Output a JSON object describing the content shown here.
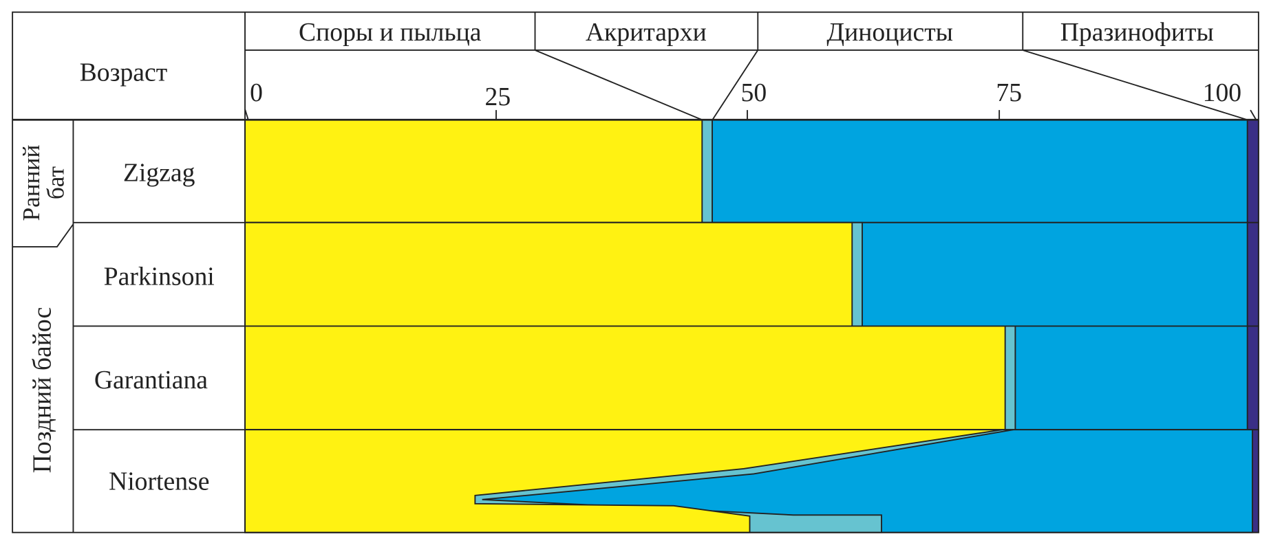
{
  "chart_data": {
    "type": "area",
    "title": "",
    "age_header": "Возраст",
    "stage_labels": [
      "Ранний бат",
      "Поздний байос"
    ],
    "stage_label_lines": [
      [
        "Ранний",
        "бат"
      ],
      [
        "Поздний байос"
      ]
    ],
    "groups": [
      "Споры и пыльца",
      "Акритархи",
      "Диноцисты",
      "Празинофиты"
    ],
    "colors": {
      "Споры и пыльца": "#fff212",
      "Акритархи": "#66c3d0",
      "Диноцисты": "#00a4e0",
      "Празинофиты": "#3a2f86"
    },
    "x_ticks": [
      "0",
      "25",
      "50",
      "75",
      "100"
    ],
    "xlim": [
      0,
      100
    ],
    "zones": [
      {
        "name": "Zigzag",
        "stage": "Ранний бат",
        "shares": [
          45.1,
          1.0,
          52.8,
          1.1
        ]
      },
      {
        "name": "Parkinsoni",
        "stage": "Поздний байос",
        "shares": [
          59.9,
          1.0,
          38.0,
          1.1
        ]
      },
      {
        "name": "Garantiana",
        "stage": "Поздний байос",
        "shares": [
          75.0,
          1.0,
          22.9,
          1.1
        ]
      },
      {
        "name": "Niortense",
        "stage": "Поздний байос",
        "profile": {
          "spores_acritarchs_boundary": [
            [
              0,
              74.7
            ],
            [
              0.38,
              49.2
            ],
            [
              0.64,
              22.7
            ],
            [
              0.72,
              22.7
            ],
            [
              0.74,
              42.3
            ],
            [
              0.84,
              49.8
            ],
            [
              1,
              49.8
            ]
          ],
          "acritarchs_dinocysts_boundary": [
            [
              0,
              75.8
            ],
            [
              0.43,
              50.2
            ],
            [
              0.68,
              23.4
            ],
            [
              0.83,
              54.1
            ],
            [
              0.83,
              62.8
            ],
            [
              1,
              62.8
            ]
          ],
          "dinocysts_prasinophytes_boundary": 99.4
        }
      }
    ]
  }
}
